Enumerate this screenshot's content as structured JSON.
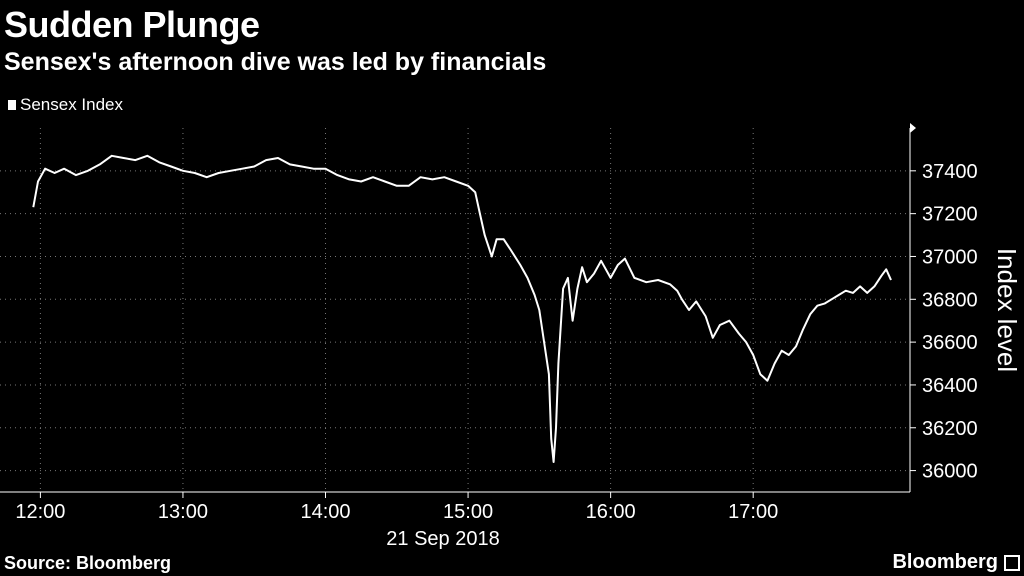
{
  "header": {
    "title": "Sudden Plunge",
    "subtitle": "Sensex's afternoon dive was led by financials"
  },
  "legend": {
    "label": "Sensex Index"
  },
  "footer": {
    "source": "Source: Bloomberg",
    "brand": "Bloomberg"
  },
  "colors": {
    "background": "#000000",
    "line": "#ffffff",
    "grid": "#777777"
  },
  "chart_data": {
    "type": "line",
    "title": "Sudden Plunge",
    "subtitle": "Sensex's afternoon dive was led by financials",
    "xlabel": "21 Sep 2018",
    "ylabel": "Index level",
    "x_ticks": [
      "12:00",
      "13:00",
      "14:00",
      "15:00",
      "16:00",
      "17:00"
    ],
    "y_ticks": [
      36000,
      36200,
      36400,
      36600,
      36800,
      37000,
      37200,
      37400
    ],
    "ylim": [
      35900,
      37600
    ],
    "grid": true,
    "legend_position": "top-left",
    "series": [
      {
        "name": "Sensex Index",
        "points": [
          [
            "11:57",
            37230
          ],
          [
            "11:59",
            37350
          ],
          [
            "12:02",
            37410
          ],
          [
            "12:06",
            37390
          ],
          [
            "12:10",
            37410
          ],
          [
            "12:15",
            37380
          ],
          [
            "12:20",
            37400
          ],
          [
            "12:25",
            37430
          ],
          [
            "12:30",
            37470
          ],
          [
            "12:35",
            37460
          ],
          [
            "12:40",
            37450
          ],
          [
            "12:45",
            37470
          ],
          [
            "12:50",
            37440
          ],
          [
            "12:55",
            37420
          ],
          [
            "13:00",
            37400
          ],
          [
            "13:05",
            37390
          ],
          [
            "13:10",
            37370
          ],
          [
            "13:15",
            37390
          ],
          [
            "13:20",
            37400
          ],
          [
            "13:25",
            37410
          ],
          [
            "13:30",
            37420
          ],
          [
            "13:35",
            37450
          ],
          [
            "13:40",
            37460
          ],
          [
            "13:45",
            37430
          ],
          [
            "13:50",
            37420
          ],
          [
            "13:55",
            37410
          ],
          [
            "14:00",
            37410
          ],
          [
            "14:05",
            37380
          ],
          [
            "14:10",
            37360
          ],
          [
            "14:15",
            37350
          ],
          [
            "14:20",
            37370
          ],
          [
            "14:25",
            37350
          ],
          [
            "14:30",
            37330
          ],
          [
            "14:35",
            37330
          ],
          [
            "14:40",
            37370
          ],
          [
            "14:45",
            37360
          ],
          [
            "14:50",
            37370
          ],
          [
            "14:55",
            37350
          ],
          [
            "15:00",
            37330
          ],
          [
            "15:03",
            37300
          ],
          [
            "15:05",
            37200
          ],
          [
            "15:07",
            37100
          ],
          [
            "15:10",
            37000
          ],
          [
            "15:12",
            37080
          ],
          [
            "15:15",
            37080
          ],
          [
            "15:18",
            37030
          ],
          [
            "15:22",
            36960
          ],
          [
            "15:25",
            36900
          ],
          [
            "15:28",
            36820
          ],
          [
            "15:30",
            36750
          ],
          [
            "15:32",
            36600
          ],
          [
            "15:34",
            36450
          ],
          [
            "15:35",
            36150
          ],
          [
            "15:36",
            36040
          ],
          [
            "15:37",
            36200
          ],
          [
            "15:38",
            36500
          ],
          [
            "15:40",
            36850
          ],
          [
            "15:42",
            36900
          ],
          [
            "15:44",
            36700
          ],
          [
            "15:46",
            36850
          ],
          [
            "15:48",
            36950
          ],
          [
            "15:50",
            36880
          ],
          [
            "15:53",
            36920
          ],
          [
            "15:56",
            36980
          ],
          [
            "16:00",
            36900
          ],
          [
            "16:03",
            36960
          ],
          [
            "16:06",
            36990
          ],
          [
            "16:10",
            36900
          ],
          [
            "16:15",
            36880
          ],
          [
            "16:20",
            36890
          ],
          [
            "16:25",
            36870
          ],
          [
            "16:28",
            36840
          ],
          [
            "16:30",
            36800
          ],
          [
            "16:33",
            36750
          ],
          [
            "16:36",
            36790
          ],
          [
            "16:40",
            36720
          ],
          [
            "16:43",
            36620
          ],
          [
            "16:46",
            36680
          ],
          [
            "16:50",
            36700
          ],
          [
            "16:54",
            36640
          ],
          [
            "16:57",
            36600
          ],
          [
            "17:00",
            36540
          ],
          [
            "17:03",
            36450
          ],
          [
            "17:06",
            36420
          ],
          [
            "17:09",
            36500
          ],
          [
            "17:12",
            36560
          ],
          [
            "17:15",
            36540
          ],
          [
            "17:18",
            36580
          ],
          [
            "17:21",
            36660
          ],
          [
            "17:24",
            36730
          ],
          [
            "17:27",
            36770
          ],
          [
            "17:30",
            36780
          ],
          [
            "17:33",
            36800
          ],
          [
            "17:36",
            36820
          ],
          [
            "17:39",
            36840
          ],
          [
            "17:42",
            36830
          ],
          [
            "17:45",
            36860
          ],
          [
            "17:48",
            36830
          ],
          [
            "17:51",
            36860
          ],
          [
            "17:54",
            36910
          ],
          [
            "17:56",
            36940
          ],
          [
            "17:58",
            36890
          ]
        ]
      }
    ]
  }
}
